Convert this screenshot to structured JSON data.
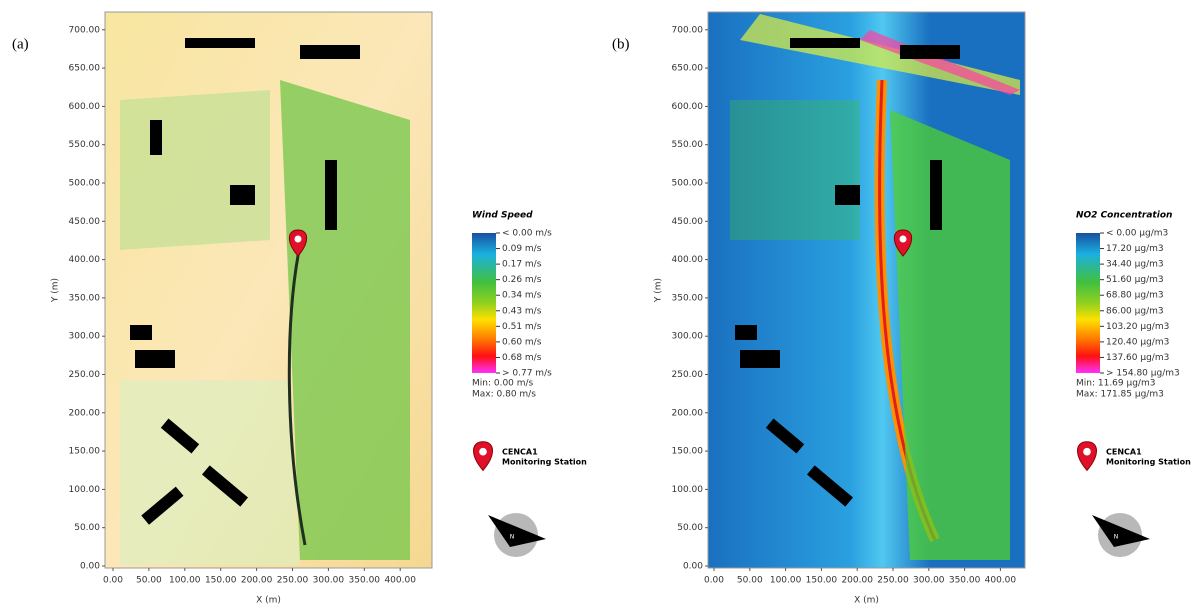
{
  "panels": [
    {
      "label": "(a)",
      "y_label": "Y (m)",
      "x_label": "X (m)",
      "yticks": [
        "0.00",
        "50.00",
        "100.00",
        "150.00",
        "200.00",
        "250.00",
        "300.00",
        "350.00",
        "400.00",
        "450.00",
        "500.00",
        "550.00",
        "600.00",
        "650.00",
        "700.00"
      ],
      "xticks": [
        "0.00",
        "50.00",
        "100.00",
        "150.00",
        "200.00",
        "250.00",
        "300.00",
        "350.00",
        "400.00"
      ],
      "legend": {
        "title": "Wind Speed",
        "entries": [
          "< 0.00 m/s",
          "0.09 m/s",
          "0.17 m/s",
          "0.26 m/s",
          "0.34 m/s",
          "0.43 m/s",
          "0.51 m/s",
          "0.60 m/s",
          "0.68 m/s",
          "> 0.77 m/s"
        ],
        "min": "Min: 0.00 m/s",
        "max": "Max: 0.80 m/s"
      },
      "station": [
        "CENCA1",
        "Monitoring Station"
      ],
      "compass": "N"
    },
    {
      "label": "(b)",
      "y_label": "Y (m)",
      "x_label": "X (m)",
      "yticks": [
        "0.00",
        "50.00",
        "100.00",
        "150.00",
        "200.00",
        "250.00",
        "300.00",
        "350.00",
        "400.00",
        "450.00",
        "500.00",
        "550.00",
        "600.00",
        "650.00",
        "700.00"
      ],
      "xticks": [
        "0.00",
        "50.00",
        "100.00",
        "150.00",
        "200.00",
        "250.00",
        "300.00",
        "350.00",
        "400.00"
      ],
      "legend": {
        "title": "NO2 Concentration",
        "entries": [
          "< 0.00 µg/m3",
          "17.20 µg/m3",
          "34.40 µg/m3",
          "51.60 µg/m3",
          "68.80 µg/m3",
          "86.00 µg/m3",
          "103.20 µg/m3",
          "120.40 µg/m3",
          "137.60 µg/m3",
          "> 154.80 µg/m3"
        ],
        "min": "Min: 11.69 µg/m3",
        "max": "Max: 171.85 µg/m3"
      },
      "station": [
        "CENCA1",
        "Monitoring Station"
      ],
      "compass": "N"
    }
  ]
}
